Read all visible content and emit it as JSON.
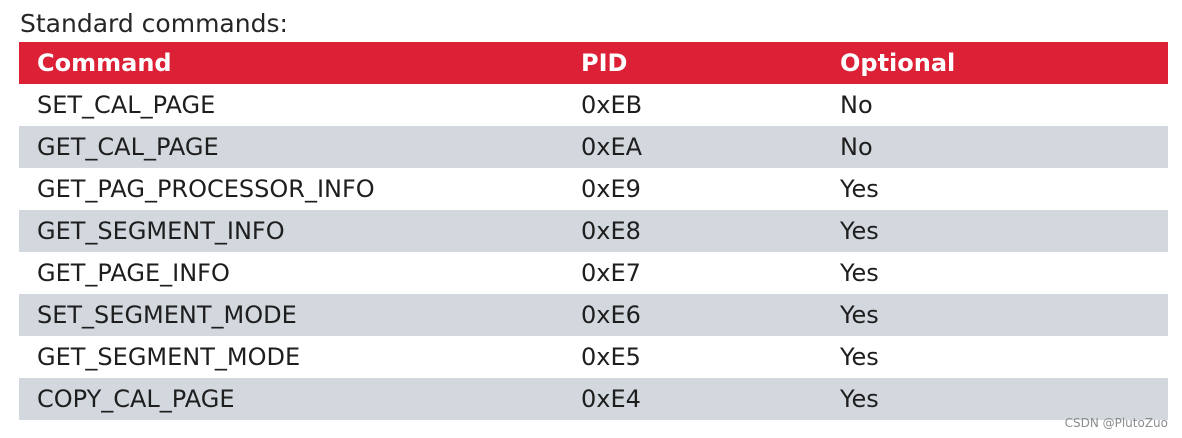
{
  "title": "Standard commands:",
  "table": {
    "headers": {
      "command": "Command",
      "pid": "PID",
      "optional": "Optional"
    },
    "rows": [
      {
        "command": "SET_CAL_PAGE",
        "pid": "0xEB",
        "optional": "No"
      },
      {
        "command": "GET_CAL_PAGE",
        "pid": "0xEA",
        "optional": "No"
      },
      {
        "command": "GET_PAG_PROCESSOR_INFO",
        "pid": "0xE9",
        "optional": "Yes"
      },
      {
        "command": "GET_SEGMENT_INFO",
        "pid": "0xE8",
        "optional": "Yes"
      },
      {
        "command": "GET_PAGE_INFO",
        "pid": "0xE7",
        "optional": "Yes"
      },
      {
        "command": "SET_SEGMENT_MODE",
        "pid": "0xE6",
        "optional": "Yes"
      },
      {
        "command": "GET_SEGMENT_MODE",
        "pid": "0xE5",
        "optional": "Yes"
      },
      {
        "command": "COPY_CAL_PAGE",
        "pid": "0xE4",
        "optional": "Yes"
      }
    ]
  },
  "watermark": "CSDN @PlutoZuo",
  "colors": {
    "header_bg": "#dc2035",
    "alt_row_bg": "#d2d8de",
    "row_bg": "#ffffff"
  }
}
